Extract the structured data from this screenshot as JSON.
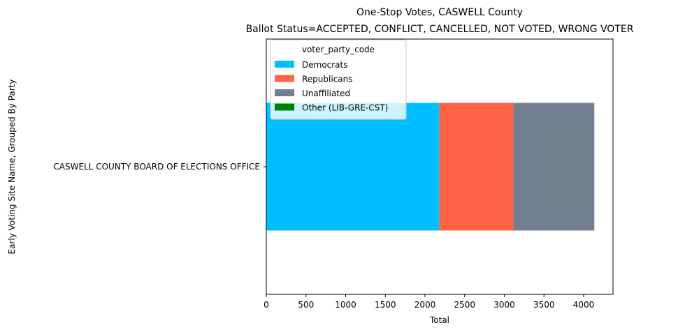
{
  "chart_data": {
    "type": "bar",
    "orientation": "horizontal",
    "stacked": true,
    "title": "One-Stop Votes, CASWELL County",
    "subtitle": " Ballot Status=ACCEPTED, CONFLICT, CANCELLED, NOT VOTED, WRONG VOTER",
    "xlabel": "Total",
    "ylabel": "Early Voting Site Name, Grouped By Party",
    "categories": [
      "CASWELL COUNTY BOARD OF ELECTIONS OFFICE"
    ],
    "xlim": [
      0,
      4370
    ],
    "xticks": [
      0,
      500,
      1000,
      1500,
      2000,
      2500,
      3000,
      3500,
      4000
    ],
    "grid": false,
    "legend": {
      "title": "voter_party_code",
      "position": "upper-left"
    },
    "series": [
      {
        "name": "Democrats",
        "values": [
          2180
        ],
        "color": "#00bfff"
      },
      {
        "name": "Republicans",
        "values": [
          935
        ],
        "color": "#ff6347"
      },
      {
        "name": "Unaffiliated",
        "values": [
          1020
        ],
        "color": "#708090"
      },
      {
        "name": "Other (LIB-GRE-CST)",
        "values": [
          0
        ],
        "color": "#008000"
      }
    ]
  }
}
